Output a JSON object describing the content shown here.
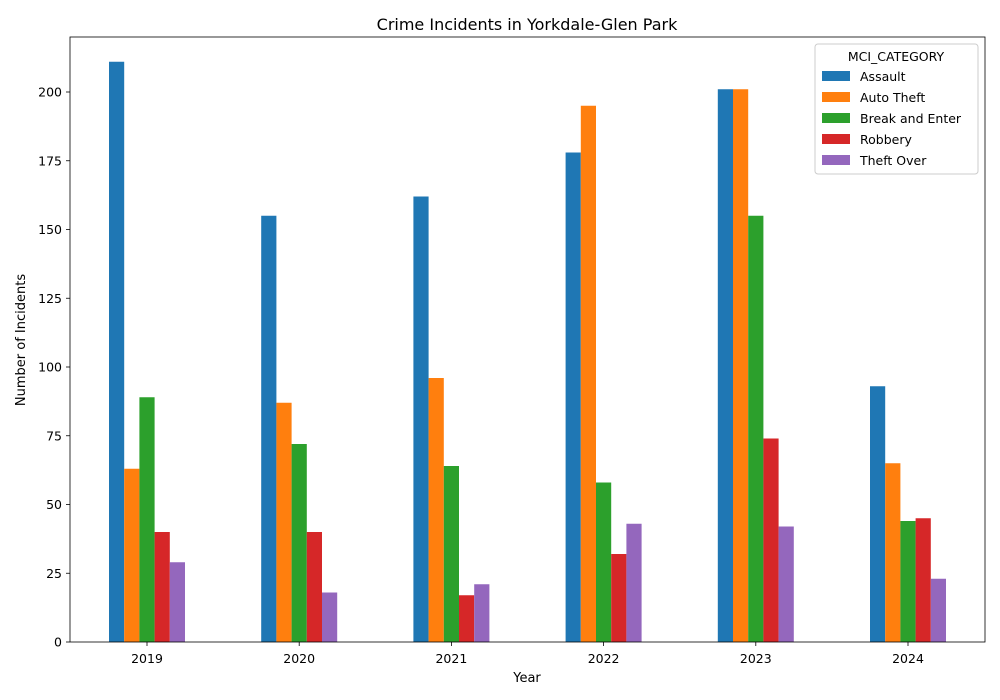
{
  "chart_data": {
    "type": "bar",
    "title": "Crime Incidents in Yorkdale-Glen Park",
    "xlabel": "Year",
    "ylabel": "Number of Incidents",
    "categories": [
      "2019",
      "2020",
      "2021",
      "2022",
      "2023",
      "2024"
    ],
    "ylim": [
      0,
      220
    ],
    "yticks": [
      0,
      25,
      50,
      75,
      100,
      125,
      150,
      175,
      200
    ],
    "grid": false,
    "legend": {
      "title": "MCI_CATEGORY",
      "position": "top-right"
    },
    "series": [
      {
        "name": "Assault",
        "color": "#1f77b4",
        "values": [
          211,
          155,
          162,
          178,
          201,
          93
        ]
      },
      {
        "name": "Auto Theft",
        "color": "#ff7f0e",
        "values": [
          63,
          87,
          96,
          195,
          201,
          65
        ]
      },
      {
        "name": "Break and Enter",
        "color": "#2ca02c",
        "values": [
          89,
          72,
          64,
          58,
          155,
          44
        ]
      },
      {
        "name": "Robbery",
        "color": "#d62728",
        "values": [
          40,
          40,
          17,
          32,
          74,
          45
        ]
      },
      {
        "name": "Theft Over",
        "color": "#9467bd",
        "values": [
          29,
          18,
          21,
          43,
          42,
          23
        ]
      }
    ]
  }
}
